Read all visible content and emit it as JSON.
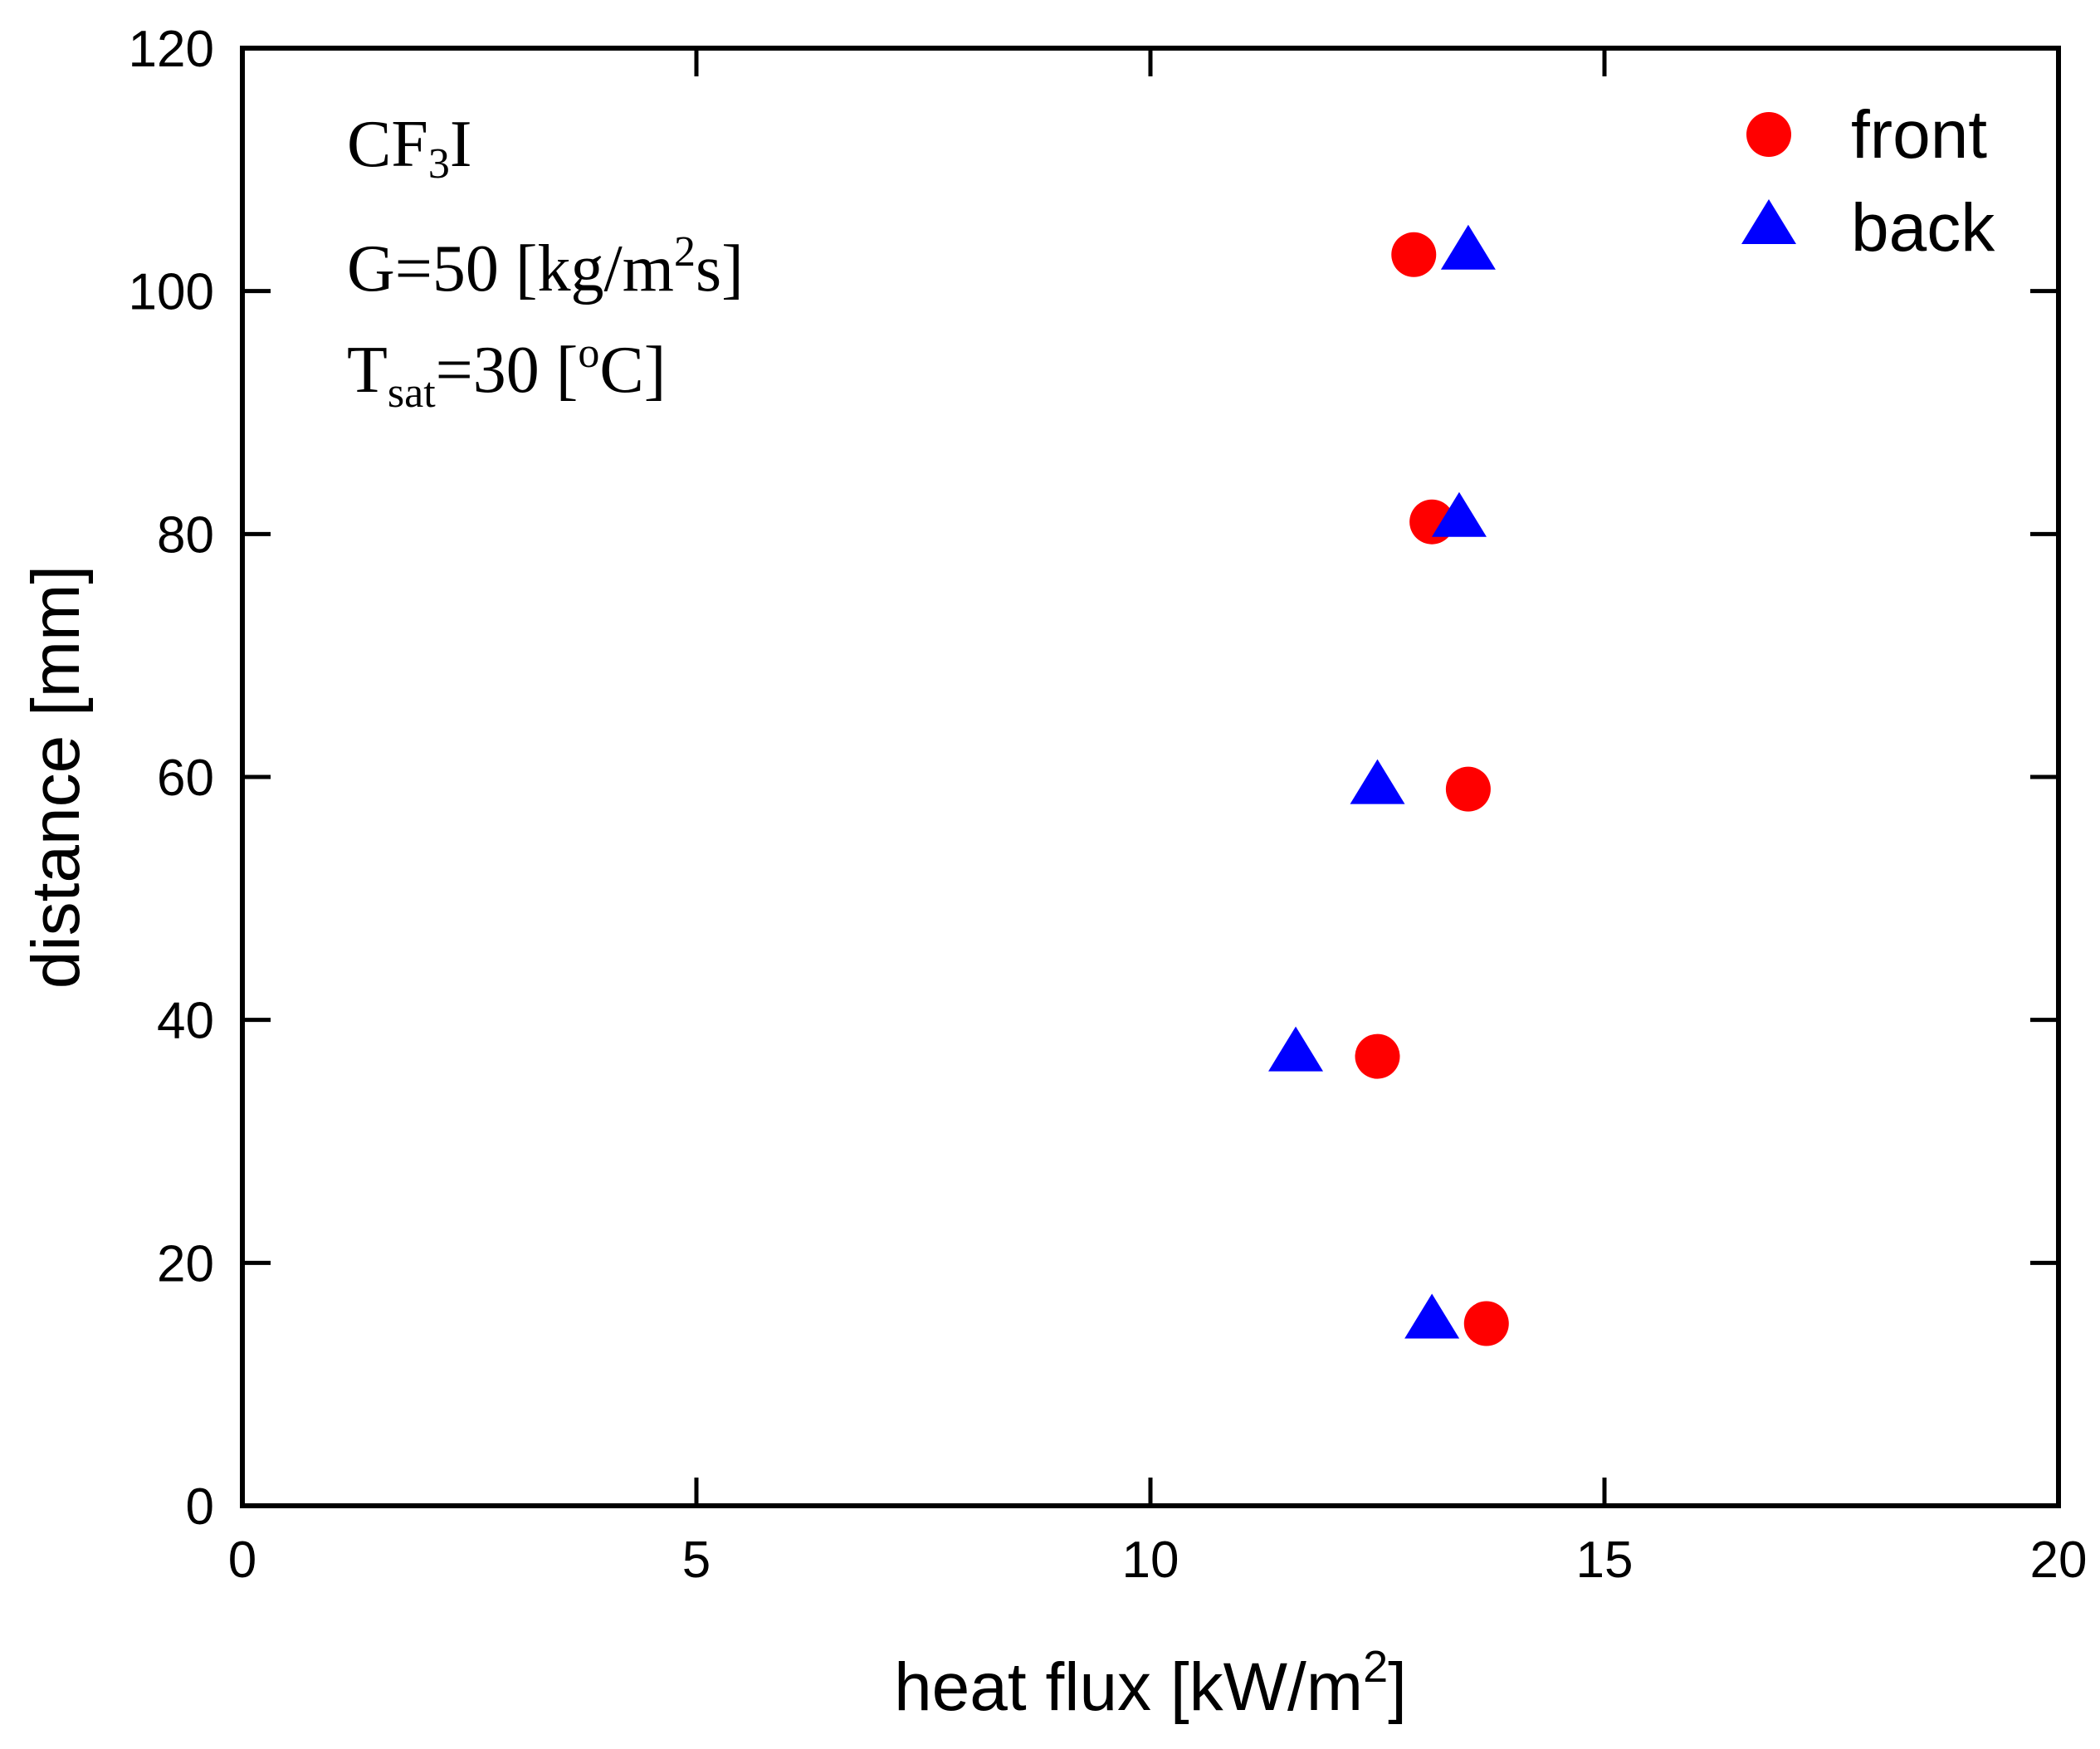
{
  "chart_data": {
    "type": "scatter",
    "xlabel_main": "heat flux [kW/m",
    "xlabel_sup": "2",
    "xlabel_end": "]",
    "ylabel": "distance [mm]",
    "xlim": [
      0,
      20
    ],
    "ylim": [
      0,
      120
    ],
    "x_ticks": [
      0,
      5,
      10,
      15,
      20
    ],
    "y_ticks": [
      0,
      20,
      40,
      60,
      80,
      100,
      120
    ],
    "legend_position": "top-right",
    "series": [
      {
        "name": "front",
        "marker": "circle",
        "color": "#ff0000",
        "points": [
          {
            "x": 12.9,
            "y": 103
          },
          {
            "x": 13.1,
            "y": 81
          },
          {
            "x": 13.5,
            "y": 59
          },
          {
            "x": 12.5,
            "y": 37
          },
          {
            "x": 13.7,
            "y": 15
          }
        ]
      },
      {
        "name": "back",
        "marker": "triangle",
        "color": "#0000ff",
        "points": [
          {
            "x": 13.5,
            "y": 103
          },
          {
            "x": 13.4,
            "y": 81
          },
          {
            "x": 12.5,
            "y": 59
          },
          {
            "x": 11.6,
            "y": 37
          },
          {
            "x": 13.1,
            "y": 15
          }
        ]
      }
    ],
    "annotations": {
      "line1_a": "CF",
      "line1_sub": "3",
      "line1_b": "I",
      "line2_a": "G=50 [kg/m",
      "line2_sup": "2",
      "line2_b": "s]",
      "line3_a": "T",
      "line3_sub": "sat",
      "line3_b": "=30 [",
      "line3_sup": "o",
      "line3_c": "C]"
    }
  }
}
